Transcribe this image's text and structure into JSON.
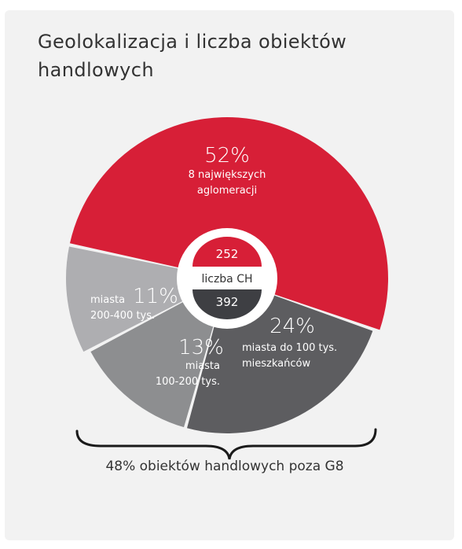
{
  "title": "Geolokalizacja i liczba obiektów handlowych",
  "colors": {
    "card_bg": "#f2f2f2",
    "red": "#d71f37",
    "dark": "#5d5d60",
    "mid": "#8d8e90",
    "light": "#aeaeb1",
    "hole": "#ffffff",
    "center_dark": "#3e3f43"
  },
  "center": {
    "top_value": "252",
    "label": "liczba CH",
    "bottom_value": "392"
  },
  "caption": "48% obiektów handlowych poza G8",
  "chart_data": {
    "type": "pie",
    "title": "Geolokalizacja i liczba obiektów handlowych",
    "series": [
      {
        "pct_label": "52%",
        "line1": "8 największych",
        "line2": "aglomeracji",
        "value": 52,
        "color": "#d71f37"
      },
      {
        "pct_label": "24%",
        "line1": "miasta do 100 tys.",
        "line2": "mieszkańców",
        "value": 24,
        "color": "#5d5d60"
      },
      {
        "pct_label": "13%",
        "line1": "miasta",
        "line2": "100-200 tys.",
        "value": 13,
        "color": "#8d8e90"
      },
      {
        "pct_label": "11%",
        "line1": "miasta",
        "line2": "200-400 tys.",
        "value": 11,
        "color": "#aeaeb1"
      }
    ],
    "center_values": {
      "top": 252,
      "bottom": 392,
      "label": "liczba CH"
    },
    "annotation": "48% obiektów handlowych poza G8"
  }
}
